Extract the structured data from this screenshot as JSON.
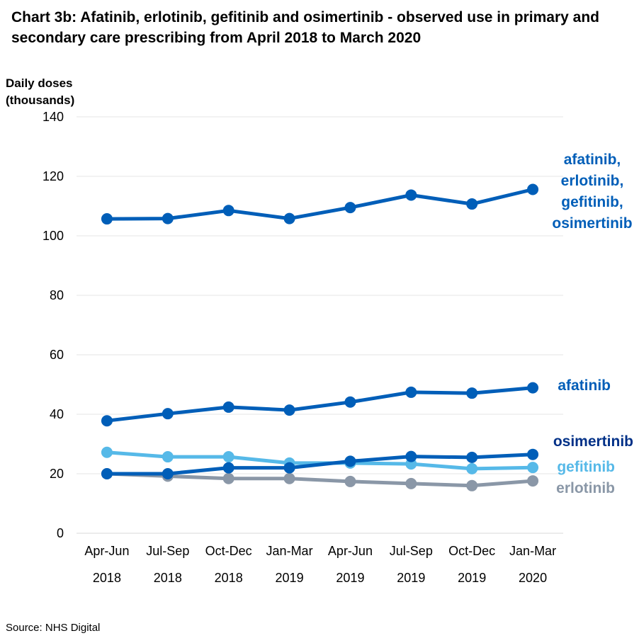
{
  "title": "Chart 3b: Afatinib, erlotinib, gefitinib and osimertinib - observed use in primary and secondary care prescribing from April 2018 to March 2020",
  "source": "Source: NHS Digital",
  "chart_data": {
    "type": "line",
    "title": "Chart 3b: Afatinib, erlotinib, gefitinib and osimertinib - observed use in primary and secondary care prescribing from April 2018 to March 2020",
    "ylabel_lines": [
      "Daily doses",
      "(thousands)"
    ],
    "xlabel": "",
    "ylim": [
      0,
      140
    ],
    "yticks": [
      0,
      20,
      40,
      60,
      80,
      100,
      120,
      140
    ],
    "grid": "horizontal",
    "legend": "direct labels at line ends",
    "categories": [
      {
        "period": "Apr-Jun",
        "year": "2018"
      },
      {
        "period": "Jul-Sep",
        "year": "2018"
      },
      {
        "period": "Oct-Dec",
        "year": "2018"
      },
      {
        "period": "Jan-Mar",
        "year": "2019"
      },
      {
        "period": "Apr-Jun",
        "year": "2019"
      },
      {
        "period": "Jul-Sep",
        "year": "2019"
      },
      {
        "period": "Oct-Dec",
        "year": "2019"
      },
      {
        "period": "Jan-Mar",
        "year": "2020"
      }
    ],
    "series": [
      {
        "name": "afatinib, erlotinib, gefitinib, osimertinib",
        "label_lines": [
          "afatinib,",
          "erlotinib,",
          "gefitinib,",
          "osimertinib"
        ],
        "color": "#005eb8",
        "markers": true,
        "values": [
          105.7,
          105.8,
          108.5,
          105.8,
          109.5,
          113.7,
          110.7,
          115.6
        ]
      },
      {
        "name": "afatinib",
        "label_lines": [
          "afatinib"
        ],
        "color": "#005eb8",
        "markers": true,
        "values": [
          37.8,
          40.2,
          42.4,
          41.4,
          44.1,
          47.4,
          47.1,
          48.9
        ]
      },
      {
        "name": "gefitinib",
        "label_lines": [
          "gefitinib"
        ],
        "color": "#56b9e8",
        "markers": true,
        "values": [
          27.2,
          25.7,
          25.7,
          23.6,
          23.6,
          23.3,
          21.7,
          22.1
        ]
      },
      {
        "name": "erlotinib",
        "label_lines": [
          "erlotinib"
        ],
        "color": "#8a97a7",
        "markers": true,
        "values": [
          20.0,
          19.2,
          18.4,
          18.4,
          17.4,
          16.7,
          16.0,
          17.6
        ]
      },
      {
        "name": "osimertinib",
        "label_lines": [
          "osimertinib"
        ],
        "color": "#005eb8",
        "markers": true,
        "values": [
          20.0,
          20.0,
          22.0,
          22.0,
          24.2,
          25.8,
          25.5,
          26.5
        ]
      }
    ]
  }
}
